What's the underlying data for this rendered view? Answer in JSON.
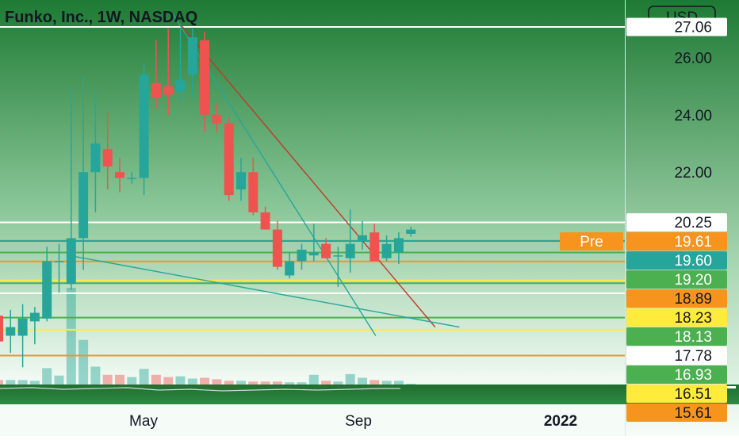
{
  "header": {
    "title": "Funko, Inc., 1W, NASDAQ",
    "currency": "USD"
  },
  "colors": {
    "up": "#26a69a",
    "down": "#ef5350",
    "bg_top": "#1e7a34",
    "bg_bottom": "#f3faf4",
    "hline_white": "#ffffff",
    "hline_orange": "#f7941d",
    "hline_yellow": "#ffeb3b",
    "hline_teal": "#26a69a",
    "hline_green": "#4caf50",
    "trend_teal": "#26a69a",
    "trend_red": "#c0392b"
  },
  "chart_data": {
    "type": "candlestick",
    "symbol": "Funko, Inc., 1W, NASDAQ",
    "currency": "USD",
    "ylim": [
      14.6,
      28.0
    ],
    "x_tick_labels": [
      "May",
      "Sep",
      "2022"
    ],
    "y_tick_labels": [
      "26.00",
      "24.00",
      "22.00"
    ],
    "candles": [
      {
        "o": 17.0,
        "h": 17.4,
        "l": 15.9,
        "c": 16.1
      },
      {
        "o": 16.3,
        "h": 17.2,
        "l": 15.7,
        "c": 16.6
      },
      {
        "o": 16.3,
        "h": 17.4,
        "l": 15.2,
        "c": 16.9
      },
      {
        "o": 16.8,
        "h": 17.3,
        "l": 16.0,
        "c": 17.1
      },
      {
        "o": 16.9,
        "h": 19.4,
        "l": 16.8,
        "c": 18.9
      },
      {
        "o": 18.9,
        "h": 19.5,
        "l": 17.8,
        "c": 18.9
      },
      {
        "o": 18.1,
        "h": 25.0,
        "l": 17.9,
        "c": 19.7
      },
      {
        "o": 19.7,
        "h": 25.3,
        "l": 18.6,
        "c": 22.0
      },
      {
        "o": 22.0,
        "h": 24.8,
        "l": 20.6,
        "c": 23.0
      },
      {
        "o": 22.8,
        "h": 24.1,
        "l": 21.4,
        "c": 22.2
      },
      {
        "o": 22.0,
        "h": 22.5,
        "l": 21.3,
        "c": 21.8
      },
      {
        "o": 21.8,
        "h": 22.0,
        "l": 21.6,
        "c": 21.8
      },
      {
        "o": 21.8,
        "h": 25.8,
        "l": 21.2,
        "c": 25.4
      },
      {
        "o": 25.1,
        "h": 26.6,
        "l": 24.2,
        "c": 24.6
      },
      {
        "o": 25.0,
        "h": 27.0,
        "l": 24.0,
        "c": 24.7
      },
      {
        "o": 24.8,
        "h": 27.0,
        "l": 24.5,
        "c": 25.2
      },
      {
        "o": 25.4,
        "h": 27.0,
        "l": 24.6,
        "c": 26.7
      },
      {
        "o": 26.6,
        "h": 26.9,
        "l": 23.4,
        "c": 24.0
      },
      {
        "o": 24.0,
        "h": 24.4,
        "l": 23.4,
        "c": 23.7
      },
      {
        "o": 23.7,
        "h": 23.9,
        "l": 21.0,
        "c": 21.2
      },
      {
        "o": 21.4,
        "h": 22.5,
        "l": 21.0,
        "c": 22.0
      },
      {
        "o": 22.0,
        "h": 22.5,
        "l": 20.5,
        "c": 20.6
      },
      {
        "o": 20.6,
        "h": 20.8,
        "l": 20.0,
        "c": 20.0
      },
      {
        "o": 20.0,
        "h": 20.3,
        "l": 18.6,
        "c": 18.7
      },
      {
        "o": 18.4,
        "h": 19.2,
        "l": 18.3,
        "c": 18.9
      },
      {
        "o": 18.9,
        "h": 19.5,
        "l": 18.6,
        "c": 19.3
      },
      {
        "o": 19.1,
        "h": 20.2,
        "l": 18.9,
        "c": 19.2
      },
      {
        "o": 19.5,
        "h": 19.7,
        "l": 19.0,
        "c": 19.0
      },
      {
        "o": 19.1,
        "h": 19.4,
        "l": 18.0,
        "c": 19.1
      },
      {
        "o": 19.0,
        "h": 20.7,
        "l": 18.5,
        "c": 19.5
      },
      {
        "o": 19.6,
        "h": 20.3,
        "l": 19.3,
        "c": 19.8
      },
      {
        "o": 19.9,
        "h": 20.2,
        "l": 18.9,
        "c": 18.9
      },
      {
        "o": 19.0,
        "h": 19.8,
        "l": 18.9,
        "c": 19.5
      },
      {
        "o": 19.2,
        "h": 19.9,
        "l": 18.8,
        "c": 19.7
      },
      {
        "o": 19.85,
        "h": 20.1,
        "l": 19.75,
        "c": 20.0
      }
    ],
    "volumes": [
      0.6,
      0.6,
      0.6,
      0.5,
      2.2,
      1.2,
      13.0,
      6.0,
      2.4,
      1.3,
      1.3,
      1.0,
      2.1,
      1.3,
      1.0,
      1.1,
      0.8,
      0.9,
      0.7,
      0.5,
      0.5,
      0.4,
      0.4,
      0.4,
      0.3,
      0.3,
      1.3,
      0.5,
      0.4,
      1.4,
      0.9,
      0.6,
      0.5,
      0.5,
      0.1
    ],
    "horizontal_levels": [
      {
        "price": 27.06,
        "color": "#ffffff",
        "label": "27.06",
        "label_bg": "#ffffff",
        "label_fg": "#131722"
      },
      {
        "price": 20.25,
        "color": "#ffffff",
        "label": "20.25",
        "label_bg": "#ffffff",
        "label_fg": "#131722"
      },
      {
        "price": 19.61,
        "color": "#ef8a24",
        "label": "19.61",
        "label_bg": "#f7941d",
        "label_fg": "#ffffff"
      },
      {
        "price": 19.6,
        "color": "#26a69a",
        "label": "19.60",
        "label_bg": "#26a69a",
        "label_fg": "#ffffff"
      },
      {
        "price": 19.2,
        "color": "#4caf50",
        "label": "19.20",
        "label_bg": "#4caf50",
        "label_fg": "#ffffff"
      },
      {
        "price": 18.89,
        "color": "#f7941d",
        "label": "18.89",
        "label_bg": "#f7941d",
        "label_fg": "#131722"
      },
      {
        "price": 18.23,
        "color": "#ffeb3b",
        "label": "18.23",
        "label_bg": "#ffeb3b",
        "label_fg": "#131722"
      },
      {
        "price": 18.13,
        "color": "#4caf50",
        "label": "18.13",
        "label_bg": "#4caf50",
        "label_fg": "#ffffff"
      },
      {
        "price": 17.78,
        "color": "#ffffff",
        "label": "17.78",
        "label_bg": "#ffffff",
        "label_fg": "#131722"
      },
      {
        "price": 16.93,
        "color": "#4caf50",
        "label": "16.93",
        "label_bg": "#4caf50",
        "label_fg": "#ffffff"
      },
      {
        "price": 16.51,
        "color": "#ffeb3b",
        "label": "16.51",
        "label_bg": "#ffeb3b",
        "label_fg": "#131722"
      },
      {
        "price": 15.61,
        "color": "#f7941d",
        "label": "15.61",
        "label_bg": "#f7941d",
        "label_fg": "#131722"
      }
    ],
    "pre_market_label": "Pre",
    "trendlines": [
      {
        "from": {
          "i": 14.4,
          "p": 27.5
        },
        "to": {
          "i": 31.1,
          "p": 16.3
        },
        "color": "#26a69a"
      },
      {
        "from": {
          "i": 15.1,
          "p": 27.1
        },
        "to": {
          "i": 36.0,
          "p": 16.6
        },
        "color": "#c0392b"
      },
      {
        "from": {
          "i": 5.8,
          "p": 19.1
        },
        "to": {
          "i": 38.0,
          "p": 16.6
        },
        "color": "#26a69a"
      }
    ]
  }
}
